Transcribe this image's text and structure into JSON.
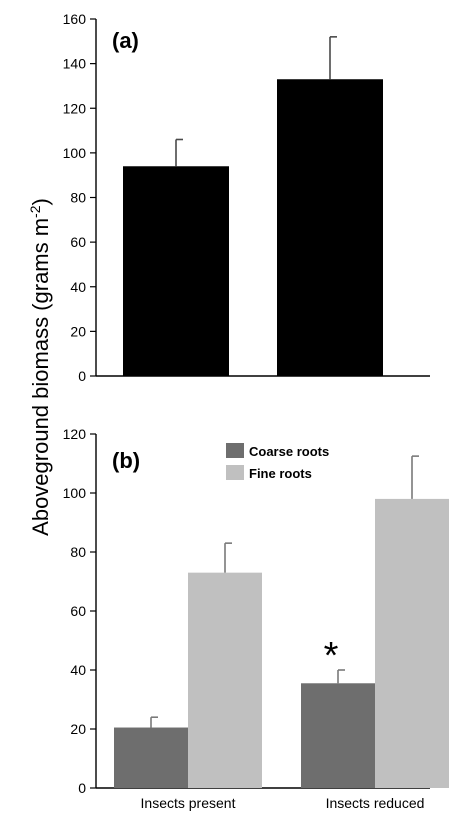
{
  "shared_ylabel": "Aboveground biomass (grams m",
  "shared_ylabel_sup": "-2",
  "shared_ylabel_close": ")",
  "chart_data": [
    {
      "type": "bar",
      "panel_label": "(a)",
      "categories": [
        "",
        ""
      ],
      "series": [
        {
          "name": "",
          "values": [
            94,
            133
          ],
          "errors": [
            12,
            19
          ],
          "color": "#000000"
        }
      ],
      "ylim": [
        0,
        160
      ],
      "yticks": [
        0,
        20,
        40,
        60,
        80,
        100,
        120,
        140,
        160
      ],
      "grid": false,
      "legend": "none"
    },
    {
      "type": "bar",
      "panel_label": "(b)",
      "categories": [
        "Insects present",
        "Insects reduced"
      ],
      "series": [
        {
          "name": "Coarse roots",
          "values": [
            20.5,
            35.5
          ],
          "errors": [
            3.5,
            4.5
          ],
          "color": "#6e6e6e"
        },
        {
          "name": "Fine roots",
          "values": [
            73,
            98
          ],
          "errors": [
            10,
            14.5
          ],
          "color": "#c0c0c0"
        }
      ],
      "ylim": [
        0,
        120
      ],
      "yticks": [
        0,
        20,
        40,
        60,
        80,
        100,
        120
      ],
      "annotations": [
        {
          "text": "*",
          "category": 1,
          "series": 0
        }
      ],
      "grid": false,
      "legend": "top-center"
    }
  ]
}
